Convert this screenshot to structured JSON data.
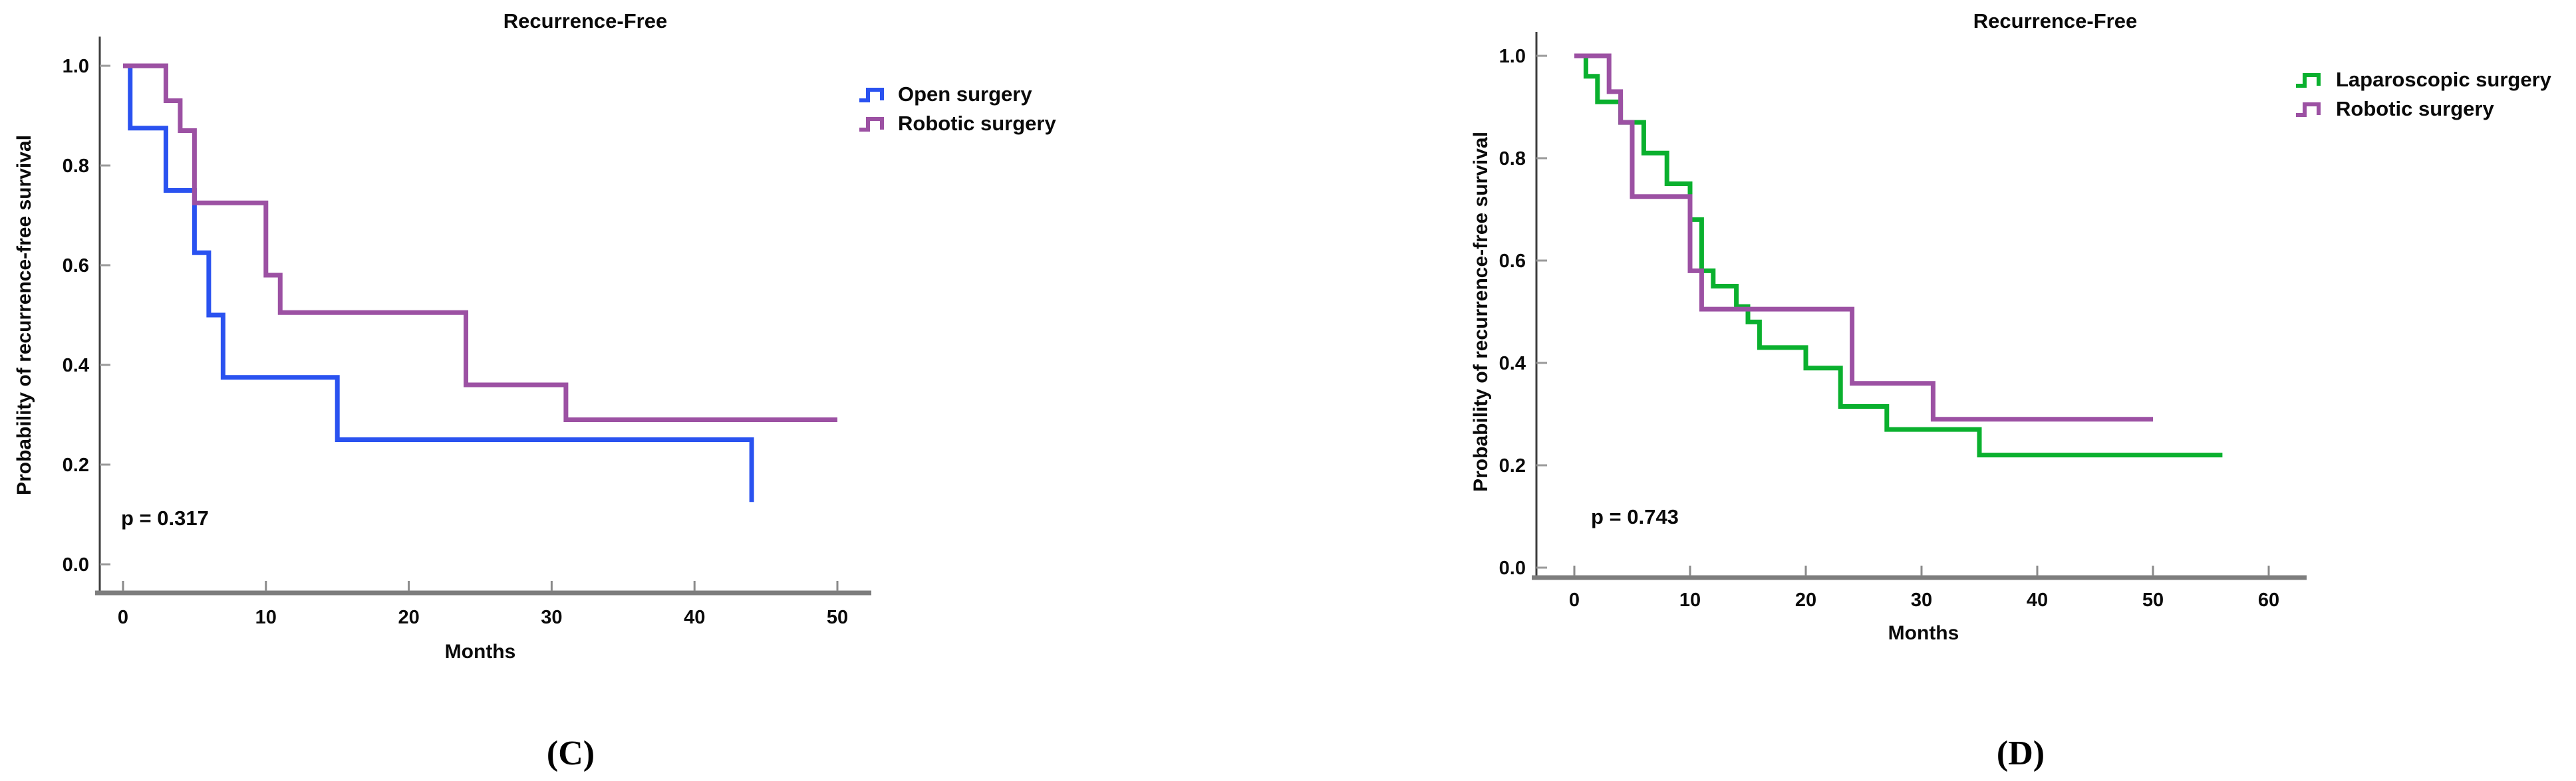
{
  "figure": {
    "background": "#ffffff",
    "description_texts": {
      "shared_title": "Recurrence-Free"
    }
  },
  "chart_data": [
    {
      "type": "line",
      "subtype": "kaplan-meier-step",
      "panel_label": "(C)",
      "title": "Recurrence-Free",
      "xlabel": "Months",
      "ylabel": "Probability of recurrence-free survival",
      "xlim": [
        0,
        52
      ],
      "ylim": [
        0,
        1.05
      ],
      "x_ticks": [
        0,
        10,
        20,
        30,
        40,
        50
      ],
      "y_ticks": [
        0.0,
        0.2,
        0.4,
        0.6,
        0.8,
        1.0
      ],
      "grid": false,
      "legend_position": "right",
      "p_value": "p = 0.317",
      "axis_color_x": "#7d7d7d",
      "axis_color_y": "#3c3c3c",
      "series": [
        {
          "name": "Open surgery",
          "color": "#2a52f0",
          "x": [
            0,
            0.5,
            3,
            5,
            6,
            7,
            15,
            44
          ],
          "y": [
            1.0,
            0.875,
            0.75,
            0.625,
            0.5,
            0.375,
            0.25,
            0.125
          ],
          "end_x": 44
        },
        {
          "name": "Robotic surgery",
          "color": "#9c51a3",
          "x": [
            0,
            3,
            4,
            5,
            10,
            11,
            24,
            31
          ],
          "y": [
            1.0,
            0.93,
            0.87,
            0.725,
            0.58,
            0.505,
            0.36,
            0.29
          ],
          "end_x": 50
        }
      ]
    },
    {
      "type": "line",
      "subtype": "kaplan-meier-step",
      "panel_label": "(D)",
      "title": "Recurrence-Free",
      "xlabel": "Months",
      "ylabel": "Probability of recurrence-free survival",
      "xlim": [
        0,
        63
      ],
      "ylim": [
        0,
        1.05
      ],
      "x_ticks": [
        0,
        10,
        20,
        30,
        40,
        50,
        60
      ],
      "y_ticks": [
        0.0,
        0.2,
        0.4,
        0.6,
        0.8,
        1.0
      ],
      "grid": false,
      "legend_position": "right",
      "p_value": "p = 0.743",
      "axis_color_x": "#7d7d7d",
      "axis_color_y": "#3c3c3c",
      "series": [
        {
          "name": "Laparoscopic surgery",
          "color": "#0ab02e",
          "x": [
            0,
            1,
            2,
            4,
            6,
            8,
            10,
            11,
            12,
            14,
            15,
            16,
            20,
            23,
            27,
            35
          ],
          "y": [
            1.0,
            0.96,
            0.91,
            0.87,
            0.81,
            0.75,
            0.68,
            0.58,
            0.55,
            0.51,
            0.48,
            0.43,
            0.39,
            0.315,
            0.27,
            0.22
          ],
          "end_x": 56
        },
        {
          "name": "Robotic surgery",
          "color": "#9c51a3",
          "x": [
            0,
            3,
            4,
            5,
            10,
            11,
            24,
            31
          ],
          "y": [
            1.0,
            0.93,
            0.87,
            0.725,
            0.58,
            0.505,
            0.36,
            0.29
          ],
          "end_x": 50
        }
      ]
    }
  ]
}
